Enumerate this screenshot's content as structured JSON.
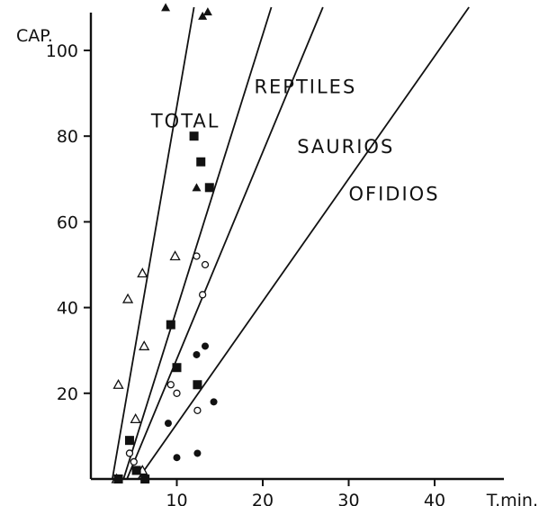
{
  "chart_data": {
    "type": "scatter",
    "title": "",
    "xlabel": "T.min.",
    "ylabel": "CAP.",
    "xlim": [
      0,
      45
    ],
    "ylim": [
      0,
      110
    ],
    "x_ticks": [
      10,
      20,
      30,
      40
    ],
    "y_ticks": [
      20,
      40,
      60,
      80,
      100
    ],
    "grid": false,
    "series": [
      {
        "name": "TOTAL",
        "marker": "triangle-open",
        "line": [
          [
            2.5,
            0
          ],
          [
            12,
            112
          ]
        ],
        "points": [
          [
            3.2,
            22
          ],
          [
            4.3,
            42
          ],
          [
            5.2,
            14
          ],
          [
            6.2,
            31
          ],
          [
            6.0,
            48
          ],
          [
            9.8,
            52
          ],
          [
            3.0,
            0
          ],
          [
            6.0,
            2
          ]
        ]
      },
      {
        "name": "REPTILES",
        "marker": "square-filled",
        "line": [
          [
            3.8,
            0
          ],
          [
            21,
            112
          ]
        ],
        "points": [
          [
            4.5,
            9
          ],
          [
            5.3,
            2
          ],
          [
            6.3,
            0
          ],
          [
            9.3,
            36
          ],
          [
            10.0,
            26
          ],
          [
            12.0,
            80
          ],
          [
            12.8,
            74
          ],
          [
            13.8,
            68
          ],
          [
            12.4,
            22
          ],
          [
            3.2,
            0
          ]
        ]
      },
      {
        "name": "SAURIOS",
        "marker": "circle-open",
        "line": [
          [
            4.2,
            0
          ],
          [
            27,
            112
          ]
        ],
        "points": [
          [
            4.5,
            6
          ],
          [
            5.0,
            4
          ],
          [
            9.3,
            22
          ],
          [
            10.0,
            20
          ],
          [
            12.3,
            52
          ],
          [
            13.3,
            50
          ],
          [
            13.0,
            43
          ],
          [
            12.4,
            16
          ]
        ]
      },
      {
        "name": "OFIDIOS",
        "marker": "circle-filled",
        "line": [
          [
            5.5,
            0
          ],
          [
            44,
            112
          ]
        ],
        "points": [
          [
            9.0,
            13
          ],
          [
            10.0,
            5
          ],
          [
            12.4,
            6
          ],
          [
            12.3,
            29
          ],
          [
            13.3,
            31
          ],
          [
            14.3,
            18
          ]
        ]
      },
      {
        "name": "",
        "marker": "triangle-filled",
        "points": [
          [
            8.7,
            110
          ],
          [
            13.0,
            108
          ],
          [
            13.6,
            109
          ],
          [
            12.3,
            68
          ]
        ]
      }
    ],
    "annotations": [
      {
        "text": "REPTILES",
        "near": [
          19,
          90
        ]
      },
      {
        "text": "TOTAL",
        "near": [
          7,
          82
        ]
      },
      {
        "text": "SAURIOS",
        "near": [
          24,
          76
        ]
      },
      {
        "text": "OFIDIOS",
        "near": [
          30,
          65
        ]
      }
    ]
  }
}
